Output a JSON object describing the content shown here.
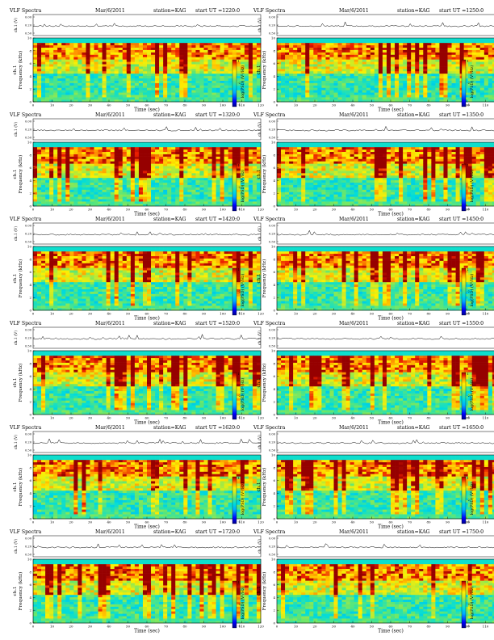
{
  "page": {
    "header_left": "VLF Spectra",
    "date": "Mar/6/2011",
    "station": "station=KAG",
    "start_prefix": "start  UT =",
    "ch_label": "ch.1 (V)",
    "ch_ticks": [
      "0.00",
      "0.20",
      "0.50"
    ],
    "ylabel": "Frequency  (kHz)",
    "ylabel_ch": "ch.1",
    "colorbar_label": "log(PSD) (V²/Hz)",
    "colorbar_ticks": [
      "1",
      "-2",
      "-4"
    ],
    "freq_ticks": [
      "0",
      "2",
      "4",
      "6",
      "8",
      "10"
    ],
    "time_ticks": [
      "0",
      "10",
      "20",
      "30",
      "40",
      "50",
      "60",
      "70",
      "80",
      "90",
      "100",
      "110",
      "120"
    ],
    "xlabel": "Time  (sec)"
  },
  "chart_data": [
    {
      "type": "heatmap",
      "panel": 1,
      "start_ut": "1220:0",
      "xlabel": "Time  (sec)",
      "ylabel": "Frequency  (kHz)",
      "xlim": [
        0,
        120
      ],
      "ylim": [
        0,
        10
      ],
      "colorbar": "log(PSD) (V²/Hz)"
    },
    {
      "type": "heatmap",
      "panel": 2,
      "start_ut": "1250:0",
      "xlabel": "Time  (sec)",
      "ylabel": "Frequency  (kHz)",
      "xlim": [
        0,
        120
      ],
      "ylim": [
        0,
        10
      ],
      "colorbar": "log(PSD) (V²/Hz)"
    },
    {
      "type": "heatmap",
      "panel": 3,
      "start_ut": "1320:0",
      "xlabel": "Time  (sec)",
      "ylabel": "Frequency  (kHz)",
      "xlim": [
        0,
        120
      ],
      "ylim": [
        0,
        10
      ],
      "colorbar": "log(PSD) (V²/Hz)"
    },
    {
      "type": "heatmap",
      "panel": 4,
      "start_ut": "1350:0",
      "xlabel": "Time  (sec)",
      "ylabel": "Frequency  (kHz)",
      "xlim": [
        0,
        120
      ],
      "ylim": [
        0,
        10
      ],
      "colorbar": "log(PSD) (V²/Hz)"
    },
    {
      "type": "heatmap",
      "panel": 5,
      "start_ut": "1420:0",
      "xlabel": "Time  (sec)",
      "ylabel": "Frequency  (kHz)",
      "xlim": [
        0,
        120
      ],
      "ylim": [
        0,
        10
      ],
      "colorbar": "log(PSD) (V²/Hz)"
    },
    {
      "type": "heatmap",
      "panel": 6,
      "start_ut": "1450:0",
      "xlabel": "Time  (sec)",
      "ylabel": "Frequency  (kHz)",
      "xlim": [
        0,
        120
      ],
      "ylim": [
        0,
        10
      ],
      "colorbar": "log(PSD) (V²/Hz)"
    },
    {
      "type": "heatmap",
      "panel": 7,
      "start_ut": "1520:0",
      "xlabel": "Time  (sec)",
      "ylabel": "Frequency  (kHz)",
      "xlim": [
        0,
        120
      ],
      "ylim": [
        0,
        10
      ],
      "colorbar": "log(PSD) (V²/Hz)"
    },
    {
      "type": "heatmap",
      "panel": 8,
      "start_ut": "1550:0",
      "xlabel": "Time  (sec)",
      "ylabel": "Frequency  (kHz)",
      "xlim": [
        0,
        120
      ],
      "ylim": [
        0,
        10
      ],
      "colorbar": "log(PSD) (V²/Hz)"
    },
    {
      "type": "heatmap",
      "panel": 9,
      "start_ut": "1620:0",
      "xlabel": "Time  (sec)",
      "ylabel": "Frequency  (kHz)",
      "xlim": [
        0,
        120
      ],
      "ylim": [
        0,
        10
      ],
      "colorbar": "log(PSD) (V²/Hz)"
    },
    {
      "type": "heatmap",
      "panel": 10,
      "start_ut": "1650:0",
      "xlabel": "Time  (sec)",
      "ylabel": "Frequency  (kHz)",
      "xlim": [
        0,
        120
      ],
      "ylim": [
        0,
        10
      ],
      "colorbar": "log(PSD) (V²/Hz)"
    },
    {
      "type": "heatmap",
      "panel": 11,
      "start_ut": "1720:0",
      "xlabel": "Time  (sec)",
      "ylabel": "Frequency  (kHz)",
      "xlim": [
        0,
        120
      ],
      "ylim": [
        0,
        10
      ],
      "colorbar": "log(PSD) (V²/Hz)"
    },
    {
      "type": "heatmap",
      "panel": 12,
      "start_ut": "1750:0",
      "xlabel": "Time  (sec)",
      "ylabel": "Frequency  (kHz)",
      "xlim": [
        0,
        120
      ],
      "ylim": [
        0,
        10
      ],
      "colorbar": "log(PSD) (V²/Hz)"
    }
  ]
}
